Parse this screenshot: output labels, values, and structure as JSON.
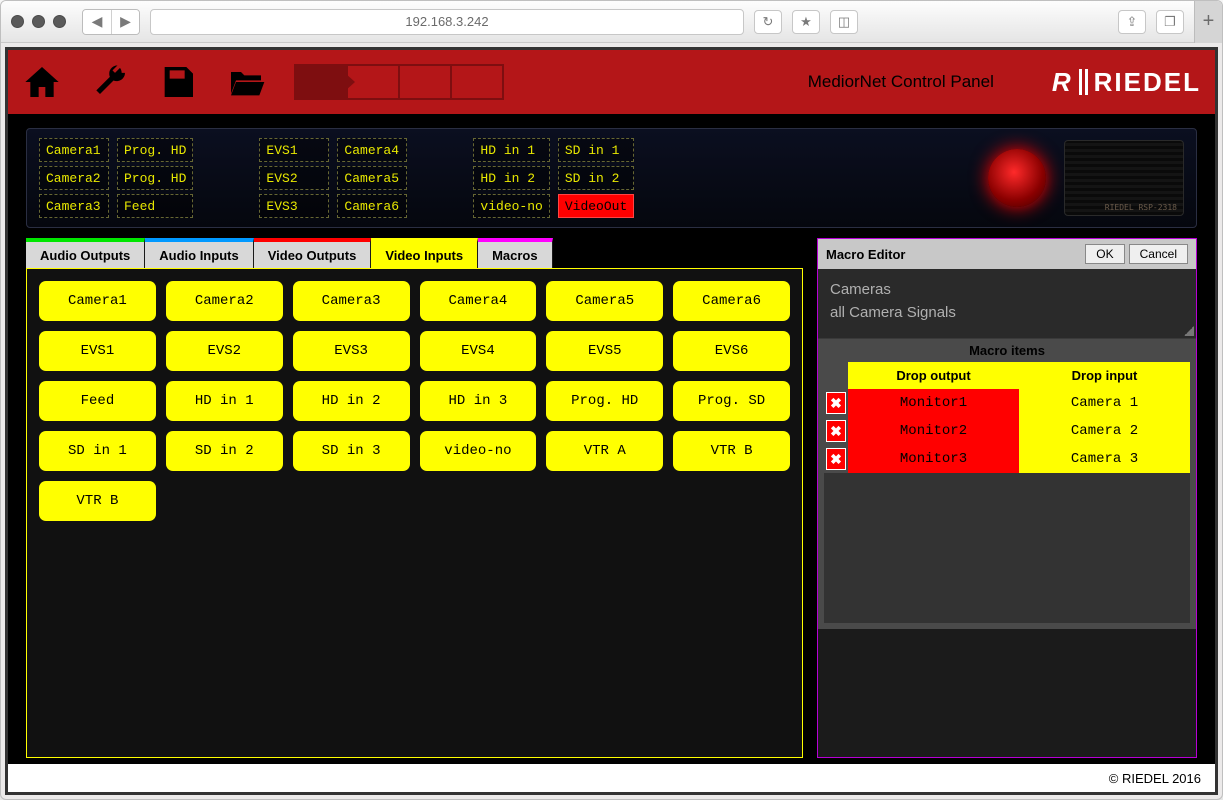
{
  "browser": {
    "url": "192.168.3.242"
  },
  "header": {
    "title": "MediorNet Control Panel",
    "brand": "RIEDEL"
  },
  "device": {
    "bank1": [
      [
        "Camera1",
        "Prog. HD"
      ],
      [
        "Camera2",
        "Prog. HD"
      ],
      [
        "Camera3",
        "Feed"
      ]
    ],
    "bank2": [
      [
        "EVS1",
        "Camera4"
      ],
      [
        "EVS2",
        "Camera5"
      ],
      [
        "EVS3",
        "Camera6"
      ]
    ],
    "bank3": [
      [
        "HD in 1",
        "SD in 1"
      ],
      [
        "HD in 2",
        "SD in 2"
      ],
      [
        "video-no",
        "VideoOut"
      ]
    ],
    "bank3_hot": [
      2,
      1
    ],
    "speaker_label": "RIEDEL RSP-2318"
  },
  "tabs": [
    {
      "label": "Audio Outputs",
      "color": "#00e600"
    },
    {
      "label": "Audio Inputs",
      "color": "#0099ff"
    },
    {
      "label": "Video Outputs",
      "color": "#ff0000"
    },
    {
      "label": "Video Inputs",
      "color": "#ffff00",
      "active": true
    },
    {
      "label": "Macros",
      "color": "#ff00ff"
    }
  ],
  "inputs": [
    "Camera1",
    "Camera2",
    "Camera3",
    "Camera4",
    "Camera5",
    "Camera6",
    "EVS1",
    "EVS2",
    "EVS3",
    "EVS4",
    "EVS5",
    "EVS6",
    "Feed",
    "HD in 1",
    "HD in 2",
    "HD in 3",
    "Prog. HD",
    "Prog. SD",
    "SD in 1",
    "SD in 2",
    "SD in 3",
    "video-no",
    "VTR A",
    "VTR B",
    "VTR B"
  ],
  "macroEditor": {
    "title": "Macro Editor",
    "ok": "OK",
    "cancel": "Cancel",
    "name": "Cameras",
    "desc": "all Camera Signals",
    "itemsTitle": "Macro items",
    "colOutput": "Drop output",
    "colInput": "Drop input",
    "rows": [
      {
        "out": "Monitor1",
        "in": "Camera 1"
      },
      {
        "out": "Monitor2",
        "in": "Camera 2"
      },
      {
        "out": "Monitor3",
        "in": "Camera 3"
      }
    ]
  },
  "footer": "© RIEDEL 2016",
  "colors": {
    "headerBg": "#b41618",
    "chipBg": "#ffff00",
    "hotBg": "#ff0000",
    "macroBorder": "#b700d6",
    "gridBorder": "#ffff00"
  }
}
